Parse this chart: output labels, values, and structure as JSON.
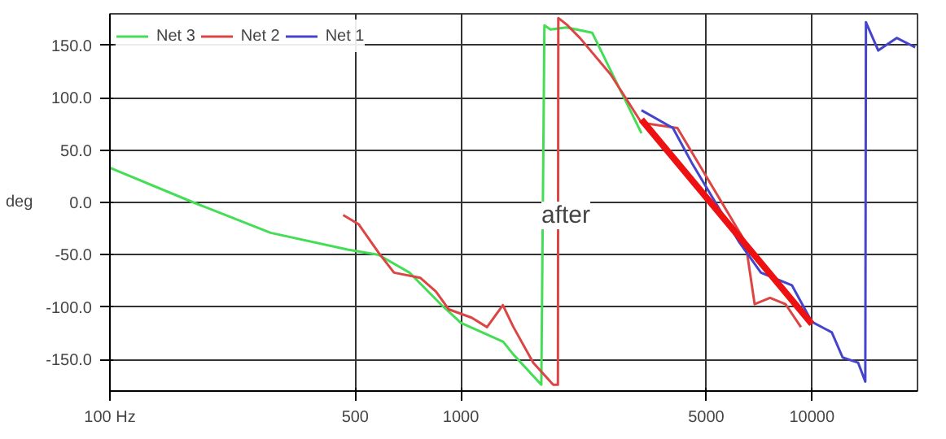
{
  "chart_data": {
    "type": "line",
    "ylabel": "deg",
    "log": "x",
    "grid": true,
    "legend": "top left",
    "line_style": "solid",
    "xlim": [
      100,
      20000
    ],
    "ylim": [
      -180,
      180
    ],
    "xticks": [
      {
        "value": 100,
        "label": "100 Hz"
      },
      500,
      1000,
      5000,
      10000
    ],
    "yticks": [
      {
        "value": -150,
        "label": "-150.0"
      },
      {
        "value": -100,
        "label": "-100.0"
      },
      {
        "value": -50,
        "label": "-50.0"
      },
      {
        "value": 0,
        "label": "0.0"
      },
      {
        "value": 50,
        "label": "50.0"
      },
      {
        "value": 100,
        "label": "100.0"
      },
      {
        "value": 150,
        "label": "150.0"
      }
    ],
    "annotations": [
      "after"
    ],
    "series": [
      {
        "name": "Net 3",
        "color": "#44dd55",
        "x": [
          100,
          173,
          287,
          476,
          583,
          714,
          875,
          1000,
          1320,
          1410,
          1695,
          1730,
          1800,
          2000,
          2366,
          3270
        ],
        "values": [
          33,
          0,
          -29,
          -45,
          -50,
          -67,
          -97,
          -115,
          -133,
          -145,
          -174,
          169,
          165,
          167,
          162,
          66
        ]
      },
      {
        "name": "Net 2",
        "color": "#dd4444",
        "x": [
          462,
          512,
          583,
          645,
          767,
          849,
          923,
          1073,
          1187,
          1317,
          1412,
          1608,
          1833,
          1890,
          1895,
          2014,
          2183,
          2673,
          3270,
          4140,
          6470,
          6870,
          7600,
          8410,
          9310
        ],
        "values": [
          -12,
          -21,
          -48,
          -67,
          -72,
          -85,
          -102,
          -110,
          -119,
          -98,
          -119,
          -153,
          -174,
          -174,
          176,
          169,
          157,
          122,
          76,
          71,
          -38,
          -97,
          -91,
          -97,
          -119
        ]
      },
      {
        "name": "Net 1",
        "color": "#4444cc",
        "x": [
          3270,
          4020,
          4580,
          6210,
          7160,
          8770,
          10000,
          11400,
          12240,
          13550,
          14200,
          14260,
          15460,
          17450,
          19700
        ],
        "values": [
          88,
          71,
          36,
          -38,
          -67,
          -79,
          -114,
          -124,
          -148,
          -153,
          -171,
          172,
          145,
          157,
          148
        ]
      },
      {
        "color": "#ee1111",
        "x": [
          3270,
          10000
        ],
        "values": [
          79,
          -116
        ]
      }
    ]
  }
}
